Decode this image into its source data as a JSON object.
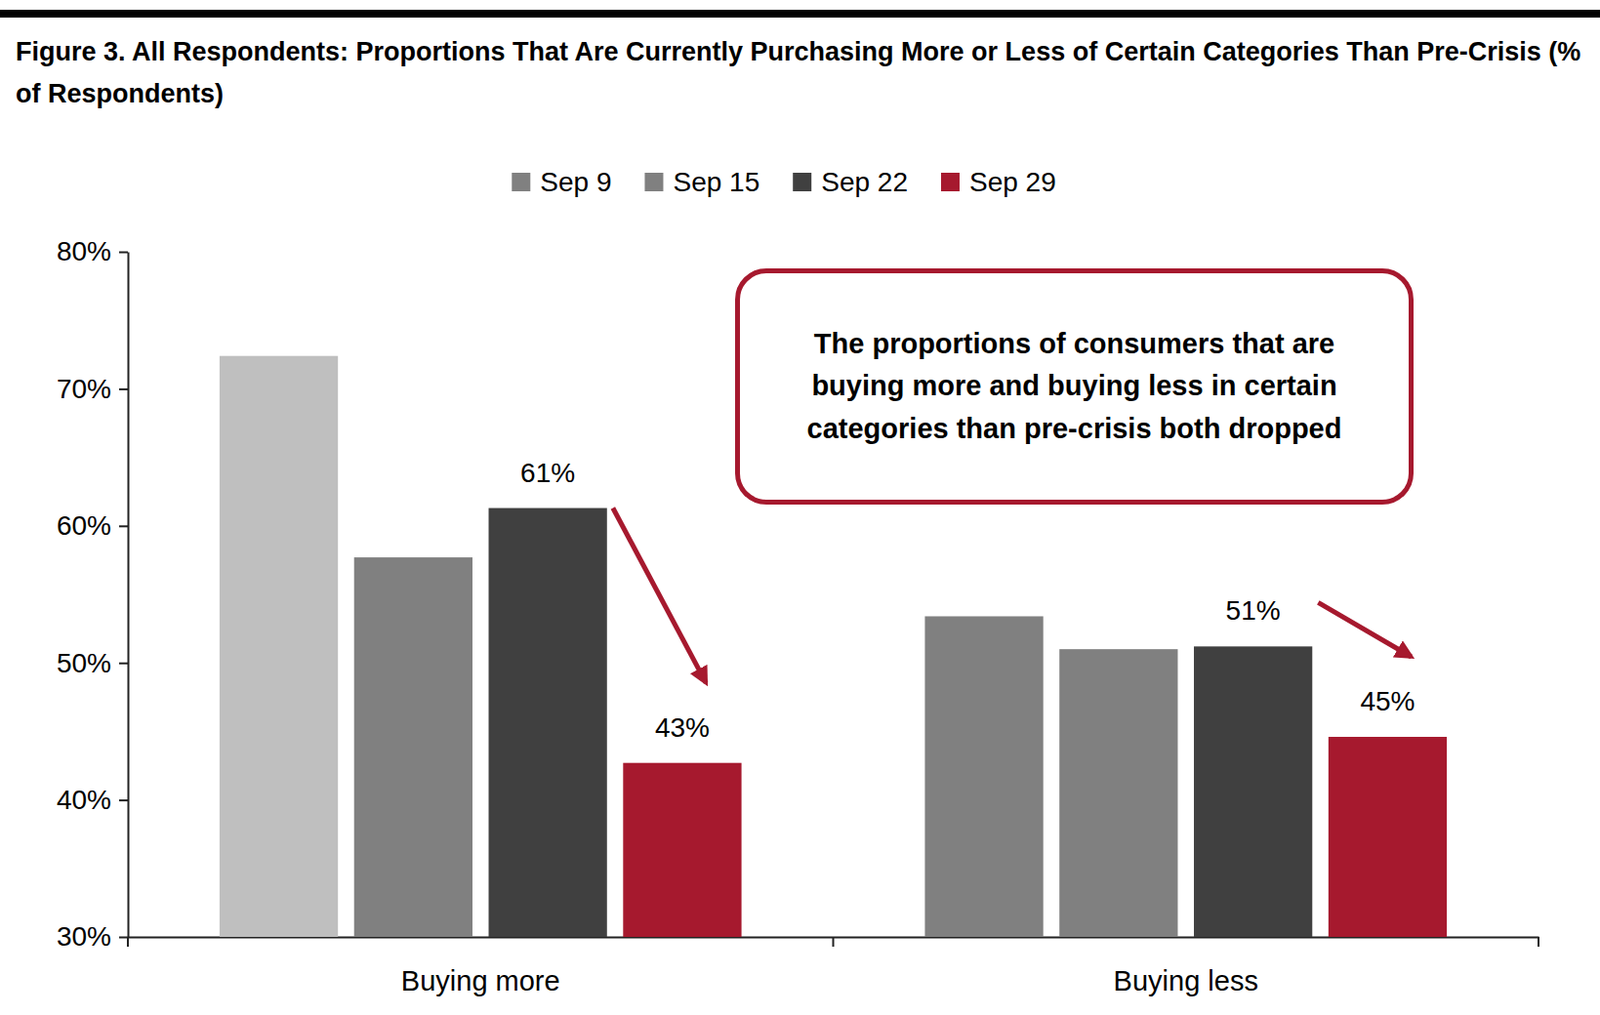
{
  "chart_data": {
    "type": "bar",
    "title": "Figure 3. All Respondents: Proportions That Are Currently Purchasing More or Less of Certain Categories Than Pre-Crisis (% of Respondents)",
    "categories": [
      "Buying more",
      "Buying less"
    ],
    "series": [
      {
        "name": "Sep 9",
        "color": "#808080",
        "colors": [
          "#bfbfbf",
          "#808080"
        ],
        "values": [
          72.4,
          53.4
        ]
      },
      {
        "name": "Sep 15",
        "color": "#808080",
        "values": [
          57.7,
          51.0
        ]
      },
      {
        "name": "Sep 22",
        "color": "#404040",
        "values": [
          61.3,
          51.2
        ],
        "data_labels": true,
        "value_labels": [
          "61%",
          "51%"
        ]
      },
      {
        "name": "Sep 29",
        "color": "#a6192e",
        "values": [
          42.7,
          44.6
        ],
        "data_labels": true,
        "value_labels": [
          "43%",
          "45%"
        ]
      }
    ],
    "ylim": [
      30,
      80
    ],
    "yticks": [
      {
        "value": 30,
        "label": "30%"
      },
      {
        "value": 40,
        "label": "40%"
      },
      {
        "value": 50,
        "label": "50%"
      },
      {
        "value": 60,
        "label": "60%"
      },
      {
        "value": 70,
        "label": "70%"
      },
      {
        "value": 80,
        "label": "80%"
      }
    ],
    "grid": false,
    "legend": "top",
    "annotations": [
      "The proportions of consumers that are buying more and buying less in certain categories than pre-crisis both dropped"
    ]
  }
}
